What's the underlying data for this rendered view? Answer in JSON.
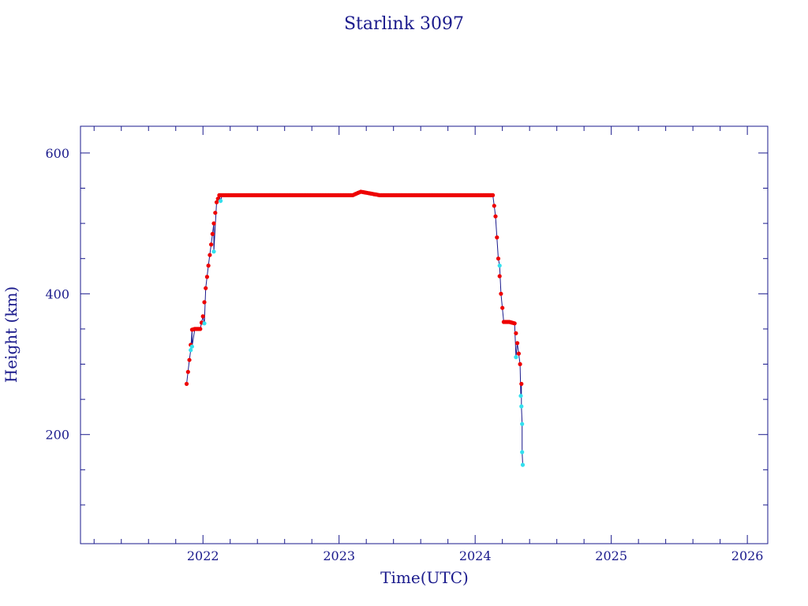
{
  "chart_data": {
    "type": "scatter",
    "title": "Starlink 3097",
    "xlabel": "Time(UTC)",
    "ylabel": "Height (km)",
    "xlim": [
      2021.1,
      2026.15
    ],
    "ylim": [
      45,
      638
    ],
    "x_ticks": [
      2022,
      2023,
      2024,
      2025,
      2026
    ],
    "x_tick_labels": [
      "2022",
      "2023",
      "2024",
      "2025",
      "2026"
    ],
    "y_ticks": [
      200,
      400,
      600
    ],
    "y_tick_labels": [
      "200",
      "400",
      "600"
    ],
    "grid": false,
    "legend": "none",
    "colors": {
      "axis": "#1a1a8c",
      "primary_points": "#ee0000",
      "secondary_points": "#33e0ee",
      "line": "#1a1a8c"
    },
    "series": [
      {
        "x": [
          2021.88,
          2021.9,
          2021.92,
          2021.94,
          2021.96,
          2021.98,
          2022.0,
          2022.02,
          2022.04,
          2022.06,
          2022.08,
          2022.1,
          2022.12,
          2022.14,
          2022.3,
          2022.5,
          2022.7,
          2022.9,
          2023.1,
          2023.16,
          2023.3,
          2023.5,
          2023.7,
          2023.9,
          2024.06,
          2024.13,
          2024.15,
          2024.17,
          2024.19,
          2024.21,
          2024.25,
          2024.29,
          2024.31,
          2024.33,
          2024.34
        ],
        "y": [
          272,
          306,
          349,
          350,
          350,
          350,
          368,
          408,
          440,
          470,
          500,
          530,
          540,
          540,
          540,
          540,
          540,
          540,
          540,
          545,
          540,
          540,
          540,
          540,
          540,
          540,
          510,
          450,
          400,
          360,
          360,
          358,
          330,
          300,
          272
        ]
      },
      {
        "x": [
          2021.91,
          2021.92,
          2022.01,
          2022.08,
          2022.13,
          2024.18,
          2024.3,
          2024.335,
          2024.34,
          2024.345,
          2024.345,
          2024.35
        ],
        "y": [
          320,
          325,
          358,
          460,
          532,
          440,
          310,
          255,
          240,
          215,
          175,
          157
        ]
      }
    ]
  }
}
